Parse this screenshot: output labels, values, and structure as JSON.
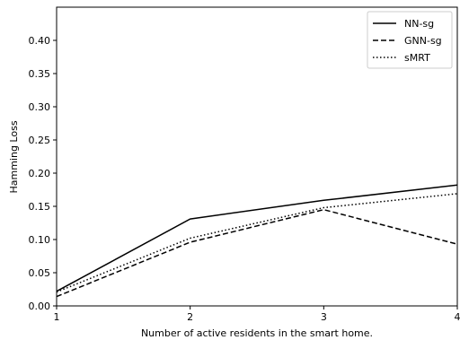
{
  "chart_data": {
    "type": "line",
    "x": [
      1,
      2,
      3,
      4
    ],
    "xticks": [
      "1",
      "2",
      "3",
      "4"
    ],
    "yticks": [
      "0.00",
      "0.05",
      "0.10",
      "0.15",
      "0.20",
      "0.25",
      "0.30",
      "0.35",
      "0.40"
    ],
    "xlim": [
      1,
      4
    ],
    "ylim": [
      0,
      0.45
    ],
    "xlabel": "Number of active residents in the smart home.",
    "ylabel": "Hamming Loss",
    "grid": false,
    "legend_position": "top-right",
    "series": [
      {
        "name": "NN-sg",
        "values": [
          0.022,
          0.131,
          0.159,
          0.182
        ],
        "style": "solid",
        "color": "#000000"
      },
      {
        "name": "GNN-sg",
        "values": [
          0.014,
          0.096,
          0.145,
          0.093
        ],
        "style": "dashed",
        "color": "#000000"
      },
      {
        "name": "sMRT",
        "values": [
          0.021,
          0.102,
          0.148,
          0.169
        ],
        "style": "dotted",
        "color": "#000000"
      }
    ]
  }
}
